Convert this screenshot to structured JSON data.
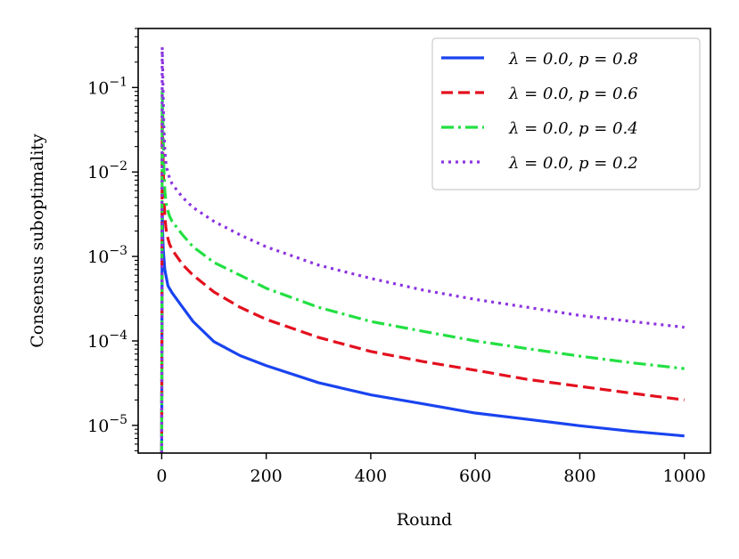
{
  "chart_data": {
    "type": "line",
    "title": "",
    "xlabel": "Round",
    "ylabel": "Consensus suboptimality",
    "xlim": [
      -45,
      1050
    ],
    "ylim": [
      4.7e-06,
      0.5
    ],
    "yscale": "log",
    "grid": false,
    "legend_position": "top-right",
    "x_ticks": [
      {
        "value": 0,
        "label": "0"
      },
      {
        "value": 200,
        "label": "200"
      },
      {
        "value": 400,
        "label": "400"
      },
      {
        "value": 600,
        "label": "600"
      },
      {
        "value": 800,
        "label": "800"
      },
      {
        "value": 1000,
        "label": "1000"
      }
    ],
    "y_ticks": [
      {
        "value": 0.1,
        "base": "10",
        "exp": "−1"
      },
      {
        "value": 0.01,
        "base": "10",
        "exp": "−2"
      },
      {
        "value": 0.001,
        "base": "10",
        "exp": "−3"
      },
      {
        "value": 0.0001,
        "base": "10",
        "exp": "−4"
      },
      {
        "value": 1e-05,
        "base": "10",
        "exp": "−5"
      }
    ],
    "series": [
      {
        "name": "λ = 0.0, p = 0.8",
        "color": "#1a44f0",
        "dash": "solid",
        "x": [
          0,
          1,
          2,
          3,
          4,
          6,
          8,
          12,
          20,
          40,
          60,
          100,
          150,
          200,
          300,
          400,
          500,
          600,
          700,
          800,
          900,
          1000
        ],
        "values": [
          4.7e-06,
          0.004,
          0.0018,
          0.0012,
          0.001,
          0.0007,
          0.0006,
          0.00045,
          0.00037,
          0.00025,
          0.00017,
          9.8e-05,
          6.7e-05,
          5.1e-05,
          3.2e-05,
          2.3e-05,
          1.8e-05,
          1.4e-05,
          1.18e-05,
          9.9e-06,
          8.5e-06,
          7.5e-06
        ]
      },
      {
        "name": "λ = 0.0, p = 0.6",
        "color": "#e3101e",
        "dash": "dashed",
        "x": [
          0,
          1,
          2,
          3,
          4,
          6,
          8,
          10,
          15,
          20,
          40,
          60,
          100,
          150,
          200,
          300,
          400,
          500,
          600,
          700,
          800,
          900,
          1000
        ],
        "values": [
          4.7e-06,
          0.045,
          0.02,
          0.012,
          0.006,
          0.003,
          0.0022,
          0.0018,
          0.0014,
          0.0012,
          0.0008,
          0.0006,
          0.00038,
          0.00025,
          0.00018,
          0.00011,
          7.5e-05,
          5.7e-05,
          4.5e-05,
          3.5e-05,
          2.9e-05,
          2.4e-05,
          2e-05
        ]
      },
      {
        "name": "λ = 0.0, p = 0.4",
        "color": "#22e042",
        "dash": "dashdot",
        "x": [
          0,
          1,
          2,
          3,
          4,
          6,
          8,
          10,
          15,
          20,
          40,
          60,
          100,
          150,
          200,
          300,
          400,
          500,
          600,
          700,
          800,
          900,
          1000
        ],
        "values": [
          4.7e-06,
          0.09,
          0.05,
          0.025,
          0.012,
          0.006,
          0.0045,
          0.0038,
          0.003,
          0.0026,
          0.0018,
          0.0013,
          0.00085,
          0.0006,
          0.00042,
          0.00025,
          0.00017,
          0.00013,
          0.0001,
          8.1e-05,
          6.6e-05,
          5.5e-05,
          4.7e-05
        ]
      },
      {
        "name": "λ = 0.0, p = 0.2",
        "color": "#8b33e0",
        "dash": "dotted",
        "x": [
          0,
          1,
          2,
          3,
          4,
          6,
          8,
          10,
          15,
          20,
          40,
          60,
          100,
          150,
          200,
          300,
          400,
          500,
          600,
          700,
          800,
          900,
          1000
        ],
        "values": [
          4.7e-06,
          0.3,
          0.15,
          0.07,
          0.035,
          0.018,
          0.013,
          0.011,
          0.0085,
          0.0072,
          0.005,
          0.0038,
          0.0026,
          0.0018,
          0.0013,
          0.00079,
          0.00055,
          0.0004,
          0.00031,
          0.00025,
          0.0002,
          0.00017,
          0.000145
        ]
      }
    ]
  }
}
